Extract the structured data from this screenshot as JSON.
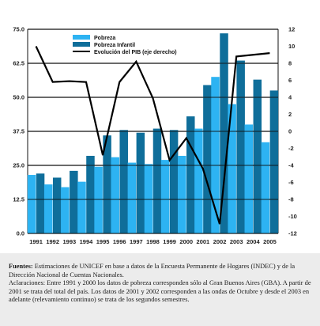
{
  "chart_data": {
    "type": "bar",
    "categories": [
      "1991",
      "1992",
      "1993",
      "1994",
      "1995",
      "1996",
      "1997",
      "1998",
      "1999",
      "2000",
      "2001",
      "2002",
      "2003",
      "2004",
      "2005"
    ],
    "series": [
      {
        "name": "Pobreza",
        "axis": "left",
        "color": "#2db3f2",
        "values": [
          21.5,
          18.0,
          17.0,
          19.0,
          24.5,
          28.0,
          26.0,
          25.5,
          27.0,
          28.5,
          38.5,
          57.5,
          47.5,
          40.0,
          33.5
        ]
      },
      {
        "name": "Pobreza Infantil",
        "axis": "left",
        "color": "#0f6e9a",
        "values": [
          22.0,
          20.5,
          23.0,
          28.5,
          36.0,
          38.0,
          37.0,
          38.5,
          38.0,
          43.0,
          54.5,
          73.5,
          63.5,
          56.5,
          52.5
        ]
      },
      {
        "name": "Evolución del PIB (eje derecho)",
        "axis": "right",
        "type": "line",
        "color": "#000000",
        "values": [
          10.0,
          5.8,
          5.9,
          5.8,
          -2.8,
          5.8,
          8.2,
          3.9,
          -3.4,
          -0.8,
          -4.4,
          -10.9,
          8.8,
          9.0,
          9.2
        ]
      }
    ],
    "yleft": {
      "ticks": [
        "0.0",
        "12.5",
        "25.0",
        "37.5",
        "50.0",
        "62.5",
        "75.0"
      ],
      "ylim": [
        0,
        75
      ]
    },
    "yright": {
      "ticks": [
        "-12",
        "-10",
        "-8",
        "-6",
        "-4",
        "-2",
        "0",
        "2",
        "4",
        "6",
        "8",
        "10",
        "12"
      ],
      "ylim": [
        -12,
        12
      ]
    },
    "legend_position": "top-left",
    "grid": "horizontal"
  },
  "notes": {
    "sources_label": "Fuentes:",
    "sources_text": " Estimaciones de UNICEF en base a datos de la Encuesta Permanente de Hogares (INDEC) y de la Dirección Nacional de Cuentas Nacionales.",
    "clarifications": "Aclaraciones: Entre 1991 y 2000 los datos de pobreza corresponden sólo al Gran Buenos Aires (GBA). A partir de 2001 se trata del total del país. Los datos de 2001 y 2002 corresponden a las ondas de Octubre y desde el 2003 en adelante (relevamiento continuo) se trata de los segundos semestres."
  }
}
